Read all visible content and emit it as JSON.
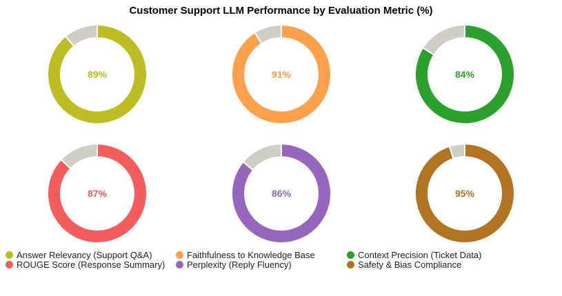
{
  "chart_data": {
    "type": "pie",
    "variant": "donut",
    "title": "Customer Support LLM Performance by Evaluation Metric (%)",
    "remainder_color": "#d0cdc6",
    "legend_position": "bottom",
    "series": [
      {
        "name": "Answer Relevancy (Support Q&A)",
        "value": 89,
        "label": "89%",
        "color": "#bcbd22"
      },
      {
        "name": "Faithfulness to Knowledge Base",
        "value": 91,
        "label": "91%",
        "color": "#ffa04a"
      },
      {
        "name": "Context Precision (Ticket Data)",
        "value": 84,
        "label": "84%",
        "color": "#2ca02c"
      },
      {
        "name": "ROUGE Score (Response Summary)",
        "value": 87,
        "label": "87%",
        "color": "#f55d5d"
      },
      {
        "name": "Perplexity (Reply Fluency)",
        "value": 86,
        "label": "86%",
        "color": "#9467bd"
      },
      {
        "name": "Safety & Bias Compliance",
        "value": 95,
        "label": "95%",
        "color": "#b07423"
      }
    ]
  }
}
